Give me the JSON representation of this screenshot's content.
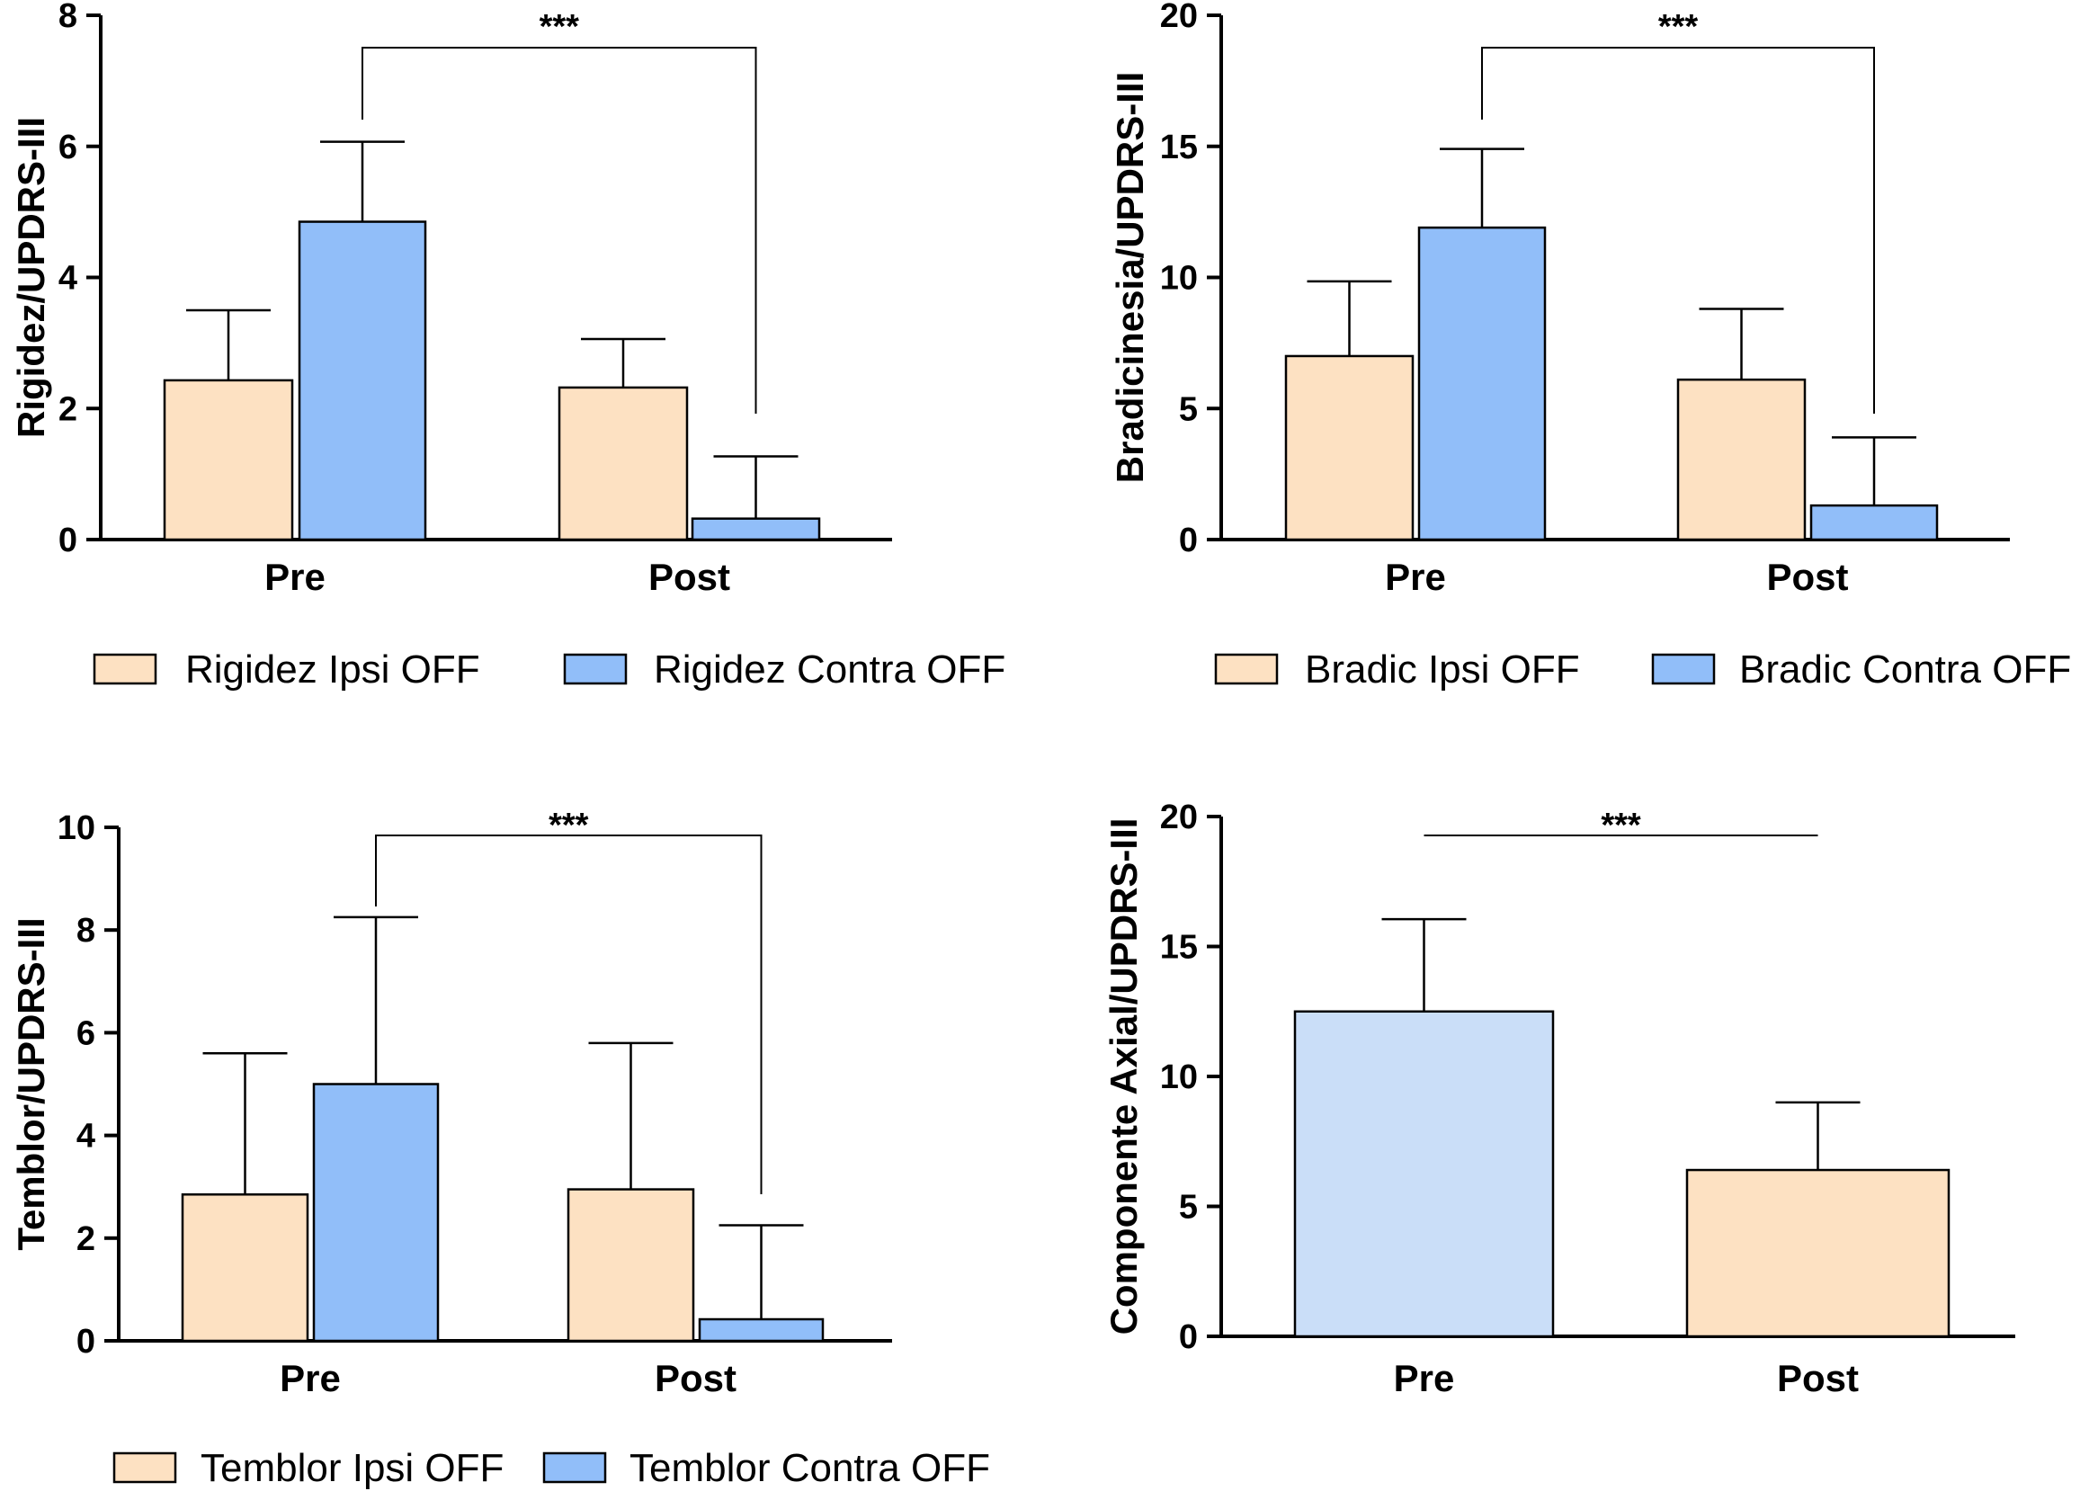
{
  "figure": "Four bar charts of UPDRS-III subscores before and after treatment",
  "colors": {
    "ipsi": "#FDE1C2",
    "contra": "#91BEF9",
    "axial_pre": "#CADEF8",
    "axial_post": "#FDE1C2",
    "stroke": "#000000"
  },
  "chart_data": [
    {
      "id": "rigidez",
      "type": "bar",
      "ylabel": "Rigidez/UPDRS-III",
      "categories": [
        "Pre",
        "Post"
      ],
      "ylim": [
        0,
        8
      ],
      "yticks": [
        "0",
        "2",
        "4",
        "6",
        "8"
      ],
      "series": [
        {
          "name": "Rigidez Ipsi OFF",
          "color_key": "ipsi",
          "values": [
            2.43,
            2.32
          ],
          "errors": [
            1.07,
            0.74
          ]
        },
        {
          "name": "Rigidez Contra OFF",
          "color_key": "contra",
          "values": [
            4.85,
            0.32
          ],
          "errors": [
            1.22,
            0.95
          ]
        }
      ],
      "significance": {
        "label": "***",
        "from": "Pre / Rigidez Contra OFF",
        "to": "Post / Rigidez Contra OFF"
      }
    },
    {
      "id": "bradicinesia",
      "type": "bar",
      "ylabel": "Bradicinesia/UPDRS-III",
      "categories": [
        "Pre",
        "Post"
      ],
      "ylim": [
        0,
        20
      ],
      "yticks": [
        "0",
        "5",
        "10",
        "15",
        "20"
      ],
      "series": [
        {
          "name": "Bradic Ipsi OFF",
          "color_key": "ipsi",
          "values": [
            7.0,
            6.1
          ],
          "errors": [
            2.85,
            2.7
          ]
        },
        {
          "name": "Bradic Contra OFF",
          "color_key": "contra",
          "values": [
            11.9,
            1.3
          ],
          "errors": [
            3.0,
            2.6
          ]
        }
      ],
      "significance": {
        "label": "***",
        "from": "Pre / Bradic Contra OFF",
        "to": "Post / Bradic Contra OFF"
      }
    },
    {
      "id": "temblor",
      "type": "bar",
      "ylabel": "Temblor/UPDRS-III",
      "categories": [
        "Pre",
        "Post"
      ],
      "ylim": [
        0,
        10
      ],
      "yticks": [
        "0",
        "2",
        "4",
        "6",
        "8",
        "10"
      ],
      "series": [
        {
          "name": "Temblor Ipsi OFF",
          "color_key": "ipsi",
          "values": [
            2.85,
            2.95
          ],
          "errors": [
            2.75,
            2.85
          ]
        },
        {
          "name": "Temblor Contra OFF",
          "color_key": "contra",
          "values": [
            5.0,
            0.42
          ],
          "errors": [
            3.25,
            1.83
          ]
        }
      ],
      "significance": {
        "label": "***",
        "from": "Pre / Temblor Contra OFF",
        "to": "Post / Temblor Contra OFF"
      }
    },
    {
      "id": "axial",
      "type": "bar",
      "ylabel": "Componente Axial/UPDRS-III",
      "categories": [
        "Pre",
        "Post"
      ],
      "ylim": [
        0,
        20
      ],
      "yticks": [
        "0",
        "5",
        "10",
        "15",
        "20"
      ],
      "series": [
        {
          "name": "Componente Axial",
          "color_keys": [
            "axial_pre",
            "axial_post"
          ],
          "values": [
            12.5,
            6.4
          ],
          "errors": [
            3.55,
            2.6
          ]
        }
      ],
      "significance": {
        "label": "***",
        "from": "Pre",
        "to": "Post"
      }
    }
  ]
}
